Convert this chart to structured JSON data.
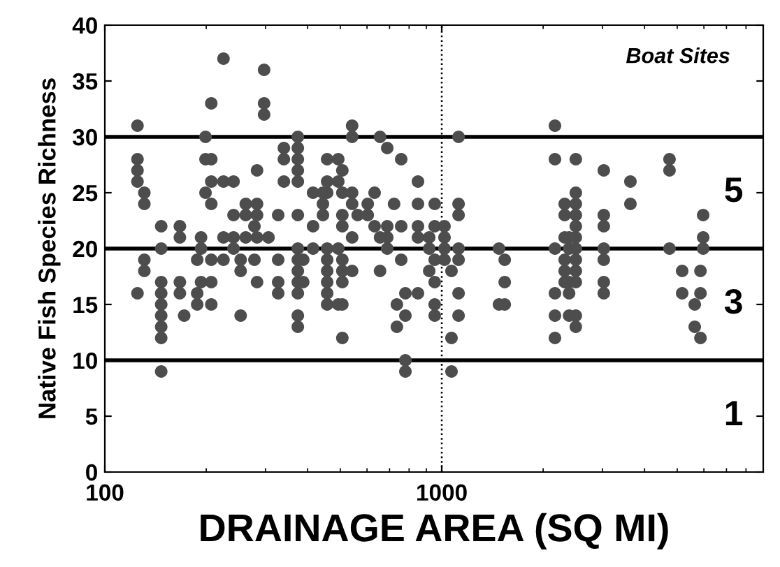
{
  "chart_data": {
    "type": "scatter",
    "xlabel": "DRAINAGE AREA (SQ MI)",
    "ylabel": "Native Fish Species Richness",
    "annotations": [
      "Boat Sites",
      "5",
      "3",
      "1"
    ],
    "log": "x",
    "xlim": [
      100,
      9000
    ],
    "xticks": [
      100,
      1000
    ],
    "ylim": [
      0,
      40
    ],
    "yticks": [
      0,
      5,
      10,
      15,
      20,
      25,
      30,
      35,
      40
    ],
    "grid": false,
    "legend": false,
    "marker": "circle",
    "ref_lines": [
      {
        "axis": "y",
        "value": 10,
        "color": "#000000",
        "line_style": "solid"
      },
      {
        "axis": "y",
        "value": 20,
        "color": "#000000",
        "line_style": "solid"
      },
      {
        "axis": "y",
        "value": 30,
        "color": "#000000",
        "line_style": "solid"
      },
      {
        "axis": "x",
        "value": 1000,
        "color": "#000000",
        "line_style": "dotted"
      }
    ],
    "series": [
      {
        "color": "#4d4d4d",
        "x": [
          125,
          125,
          125,
          125,
          125,
          131,
          131,
          131,
          131,
          147,
          147,
          147,
          147,
          147,
          147,
          147,
          147,
          147,
          167,
          167,
          167,
          167,
          172,
          188,
          188,
          188,
          193,
          193,
          193,
          199,
          199,
          199,
          207,
          207,
          207,
          207,
          207,
          207,
          207,
          225,
          225,
          225,
          225,
          241,
          241,
          241,
          241,
          253,
          253,
          253,
          262,
          262,
          262,
          278,
          278,
          283,
          283,
          283,
          283,
          283,
          297,
          297,
          297,
          306,
          327,
          327,
          327,
          327,
          340,
          340,
          340,
          374,
          374,
          374,
          374,
          374,
          374,
          374,
          374,
          374,
          374,
          374,
          374,
          374,
          388,
          388,
          415,
          415,
          415,
          444,
          444,
          444,
          457,
          457,
          457,
          457,
          457,
          457,
          457,
          457,
          457,
          493,
          493,
          493,
          493,
          507,
          507,
          507,
          507,
          507,
          507,
          507,
          507,
          507,
          542,
          542,
          542,
          542,
          542,
          542,
          563,
          603,
          603,
          632,
          632,
          656,
          656,
          656,
          689,
          689,
          689,
          689,
          722,
          736,
          736,
          758,
          758,
          758,
          780,
          780,
          780,
          780,
          850,
          850,
          850,
          850,
          850,
          918,
          918,
          918,
          953,
          953,
          953,
          953,
          953,
          953,
          1019,
          1019,
          1019,
          1019,
          1069,
          1069,
          1069,
          1122,
          1122,
          1122,
          1122,
          1122,
          1122,
          1122,
          1479,
          1479,
          1538,
          1538,
          1538,
          2168,
          2168,
          2168,
          2168,
          2168,
          2168,
          2317,
          2317,
          2317,
          2317,
          2317,
          2317,
          2388,
          2388,
          2388,
          2388,
          2388,
          2500,
          2500,
          2500,
          2500,
          2500,
          2500,
          2500,
          2500,
          2500,
          2500,
          2500,
          2500,
          3027,
          3027,
          3027,
          3027,
          3027,
          3027,
          3027,
          3631,
          3631,
          4743,
          4743,
          4743,
          5172,
          5172,
          5636,
          5636,
          5861,
          5861,
          5861,
          5970,
          5970,
          5970
        ],
        "values": [
          31,
          28,
          27,
          26,
          16,
          25,
          24,
          19,
          18,
          22,
          20,
          17,
          16,
          15,
          14,
          13,
          12,
          9,
          22,
          21,
          17,
          16,
          14,
          15,
          16,
          19,
          17,
          20,
          21,
          30,
          28,
          25,
          28,
          24,
          26,
          19,
          17,
          15,
          33,
          37,
          26,
          21,
          19,
          26,
          23,
          21,
          20,
          19,
          18,
          14,
          24,
          23,
          21,
          22,
          19,
          27,
          24,
          23,
          21,
          17,
          36,
          33,
          32,
          21,
          23,
          19,
          17,
          16,
          29,
          28,
          26,
          30,
          29,
          28,
          27,
          26,
          23,
          20,
          19,
          18,
          17,
          16,
          14,
          13,
          19,
          17,
          25,
          22,
          20,
          25,
          24,
          23,
          25,
          20,
          19,
          18,
          17,
          16,
          15,
          28,
          26,
          28,
          26,
          20,
          15,
          27,
          25,
          23,
          22,
          19,
          18,
          17,
          15,
          12,
          31,
          30,
          25,
          24,
          18,
          21,
          23,
          24,
          23,
          25,
          22,
          30,
          21,
          18,
          29,
          22,
          21,
          20,
          24,
          15,
          13,
          28,
          22,
          19,
          16,
          14,
          10,
          9,
          26,
          24,
          22,
          21,
          16,
          21,
          20,
          18,
          24,
          22,
          19,
          17,
          15,
          14,
          22,
          21,
          20,
          19,
          18,
          12,
          9,
          30,
          24,
          23,
          20,
          19,
          16,
          14,
          20,
          15,
          19,
          17,
          15,
          31,
          28,
          20,
          16,
          14,
          12,
          24,
          23,
          21,
          19,
          18,
          17,
          20,
          16,
          17,
          14,
          21,
          28,
          25,
          24,
          23,
          22,
          21,
          20,
          19,
          18,
          17,
          14,
          13,
          27,
          23,
          22,
          20,
          19,
          17,
          16,
          26,
          24,
          28,
          27,
          20,
          18,
          16,
          15,
          13,
          16,
          12,
          18,
          23,
          21,
          20
        ]
      }
    ]
  }
}
